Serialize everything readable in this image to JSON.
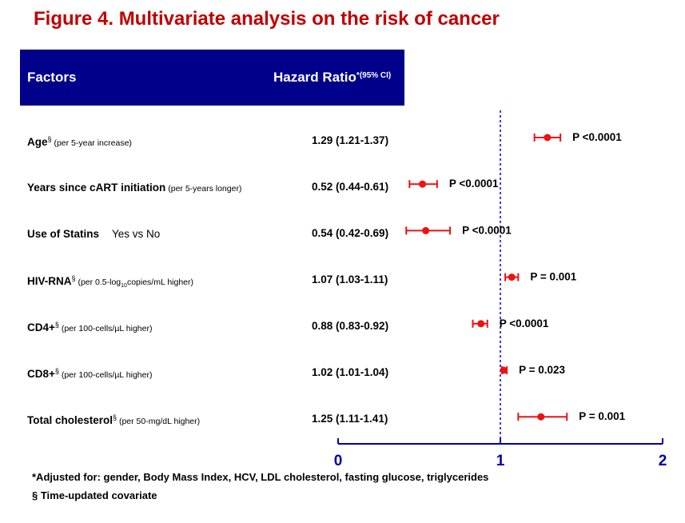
{
  "title": "Figure 4. Multivariate analysis on the risk of cancer",
  "header": {
    "factors_label": "Factors",
    "hr_label": "Hazard Ratio",
    "hr_note": "*(95% CI)"
  },
  "rows": [
    {
      "name": "Age",
      "sup": "§",
      "note_pre": " (per 5-year increase)",
      "sub": "",
      "note_post": "",
      "extra": "",
      "hr": "1.29 (1.21-1.37)",
      "p": "P <0.0001"
    },
    {
      "name": "Years since cART initiation",
      "sup": "",
      "note_pre": " (per 5-years  longer)",
      "sub": "",
      "note_post": "",
      "extra": "",
      "hr": "0.52 (0.44-0.61)",
      "p": "P <0.0001"
    },
    {
      "name": "Use of Statins",
      "sup": "",
      "note_pre": "",
      "sub": "",
      "note_post": "",
      "extra": "Yes vs No",
      "hr": "0.54 (0.42-0.69)",
      "p": "P <0.0001"
    },
    {
      "name": "HIV-RNA",
      "sup": "§",
      "note_pre": " (per 0.5-log",
      "sub": "10",
      "note_post": "copies/mL higher)",
      "extra": "",
      "hr": "1.07 (1.03-1.11)",
      "p": "P = 0.001"
    },
    {
      "name": "CD4+",
      "sup": "§",
      "note_pre": "  (per 100-cells/µL higher)",
      "sub": "",
      "note_post": "",
      "extra": "",
      "hr": "0.88 (0.83-0.92)",
      "p": "P <0.0001"
    },
    {
      "name": "CD8+",
      "sup": "§",
      "note_pre": " (per 100-cells/µL higher)",
      "sub": "",
      "note_post": "",
      "extra": "",
      "hr": "1.02 (1.01-1.04)",
      "p": "P = 0.023"
    },
    {
      "name": "Total cholesterol",
      "sup": "§",
      "note_pre": "  (per 50-mg/dL  higher)",
      "sub": "",
      "note_post": "",
      "extra": "",
      "hr": "1.25 (1.11-1.41)",
      "p": "P = 0.001"
    }
  ],
  "chart_data": {
    "type": "scatter",
    "subtype": "forest-plot",
    "x_ticks": [
      "0",
      "1",
      "2"
    ],
    "xlim": [
      0,
      2
    ],
    "reference_line": 1,
    "categories": [
      "Age",
      "Years since cART initiation",
      "Use of Statins",
      "HIV-RNA",
      "CD4+",
      "CD8+",
      "Total cholesterol"
    ],
    "hr": [
      1.29,
      0.52,
      0.54,
      1.07,
      0.88,
      1.02,
      1.25
    ],
    "ci_low": [
      1.21,
      0.44,
      0.42,
      1.03,
      0.83,
      1.01,
      1.11
    ],
    "ci_high": [
      1.37,
      0.61,
      0.69,
      1.11,
      0.92,
      1.04,
      1.41
    ],
    "p_values": [
      "P <0.0001",
      "P <0.0001",
      "P <0.0001",
      "P = 0.001",
      "P <0.0001",
      "P = 0.023",
      "P = 0.001"
    ]
  },
  "colors": {
    "title": "#c00000",
    "header_bg": "#00008b",
    "marker": "#ee1111",
    "axis": "#0000aa",
    "refline": "#0000cc"
  },
  "footnotes": [
    "*Adjusted for: gender, Body Mass Index, HCV, LDL cholesterol, fasting glucose, triglycerides",
    "§ Time-updated covariate"
  ]
}
